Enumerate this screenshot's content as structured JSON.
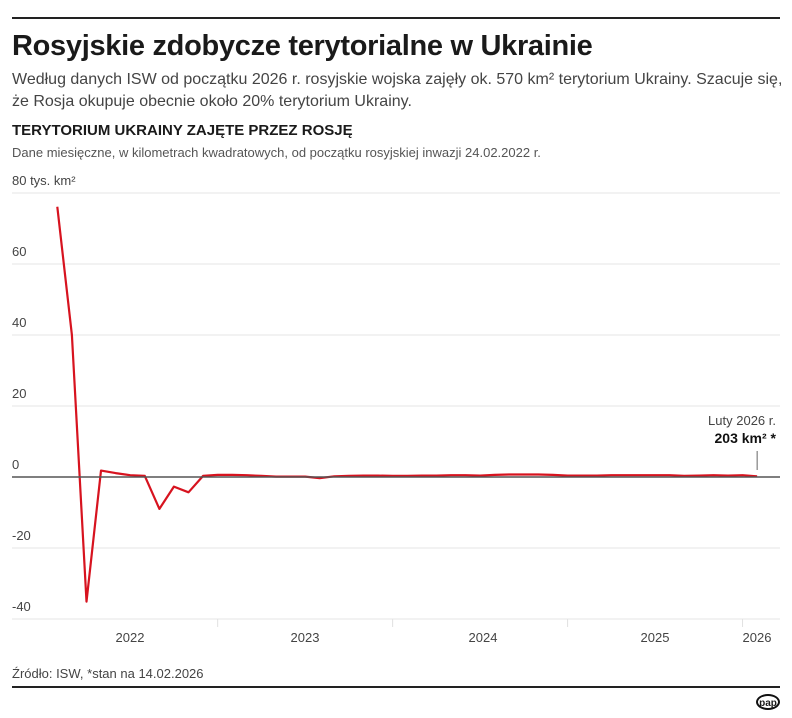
{
  "header": {
    "title": "Rosyjskie zdobycze terytorialne w Ukrainie",
    "subtitle_line1": "Według danych ISW od początku 2026 r. rosyjskie wojska zajęły ok. 570 km² terytorium Ukrainy. Szacuje się,",
    "subtitle_line2": "że Rosja okupuje obecnie około 20% terytorium Ukrainy.",
    "section_title": "TERYTORIUM UKRAINY ZAJĘTE PRZEZ ROSJĘ",
    "note": "Dane miesięczne, w kilometrach kwadratowych, od początku rosyjskiej inwazji 24.02.2022 r."
  },
  "footer": {
    "source": "Źródło: ISW, *stan na 14.02.2026",
    "logo": "pap"
  },
  "colors": {
    "line": "#d7131f",
    "zero_line": "#555555",
    "grid": "#e6e6e6"
  },
  "chart_data": {
    "type": "line",
    "ylabel": "80 tys. km²",
    "ylim": [
      -40,
      80
    ],
    "yticks": [
      80,
      60,
      40,
      20,
      0,
      -20,
      -40
    ],
    "ytick_labels": [
      "80 tys. km²",
      "60",
      "40",
      "20",
      "0",
      "-20",
      "-40"
    ],
    "xtick_labels": [
      "2022",
      "2023",
      "2024",
      "2025",
      "2026"
    ],
    "grid": true,
    "annotation": {
      "label": "Luty 2026 r.",
      "value": "203 km² *"
    },
    "x": [
      "2022-02",
      "2022-03",
      "2022-04",
      "2022-05",
      "2022-06",
      "2022-07",
      "2022-08",
      "2022-09",
      "2022-10",
      "2022-11",
      "2022-12",
      "2023-01",
      "2023-02",
      "2023-03",
      "2023-04",
      "2023-05",
      "2023-06",
      "2023-07",
      "2023-08",
      "2023-09",
      "2023-10",
      "2023-11",
      "2023-12",
      "2024-01",
      "2024-02",
      "2024-03",
      "2024-04",
      "2024-05",
      "2024-06",
      "2024-07",
      "2024-08",
      "2024-09",
      "2024-10",
      "2024-11",
      "2024-12",
      "2025-01",
      "2025-02",
      "2025-03",
      "2025-04",
      "2025-05",
      "2025-06",
      "2025-07",
      "2025-08",
      "2025-09",
      "2025-10",
      "2025-11",
      "2025-12",
      "2026-01",
      "2026-02"
    ],
    "values": [
      76.1,
      40,
      -35.1,
      1.8,
      1.1,
      0.5,
      0.3,
      -9.0,
      -2.7,
      -4.3,
      0.3,
      0.6,
      0.6,
      0.5,
      0.3,
      0.1,
      0.1,
      0.1,
      -0.3,
      0.2,
      0.3,
      0.4,
      0.4,
      0.3,
      0.3,
      0.4,
      0.4,
      0.5,
      0.5,
      0.4,
      0.6,
      0.7,
      0.7,
      0.7,
      0.6,
      0.4,
      0.4,
      0.4,
      0.5,
      0.5,
      0.5,
      0.5,
      0.5,
      0.3,
      0.4,
      0.5,
      0.4,
      0.5,
      0.2
    ]
  }
}
